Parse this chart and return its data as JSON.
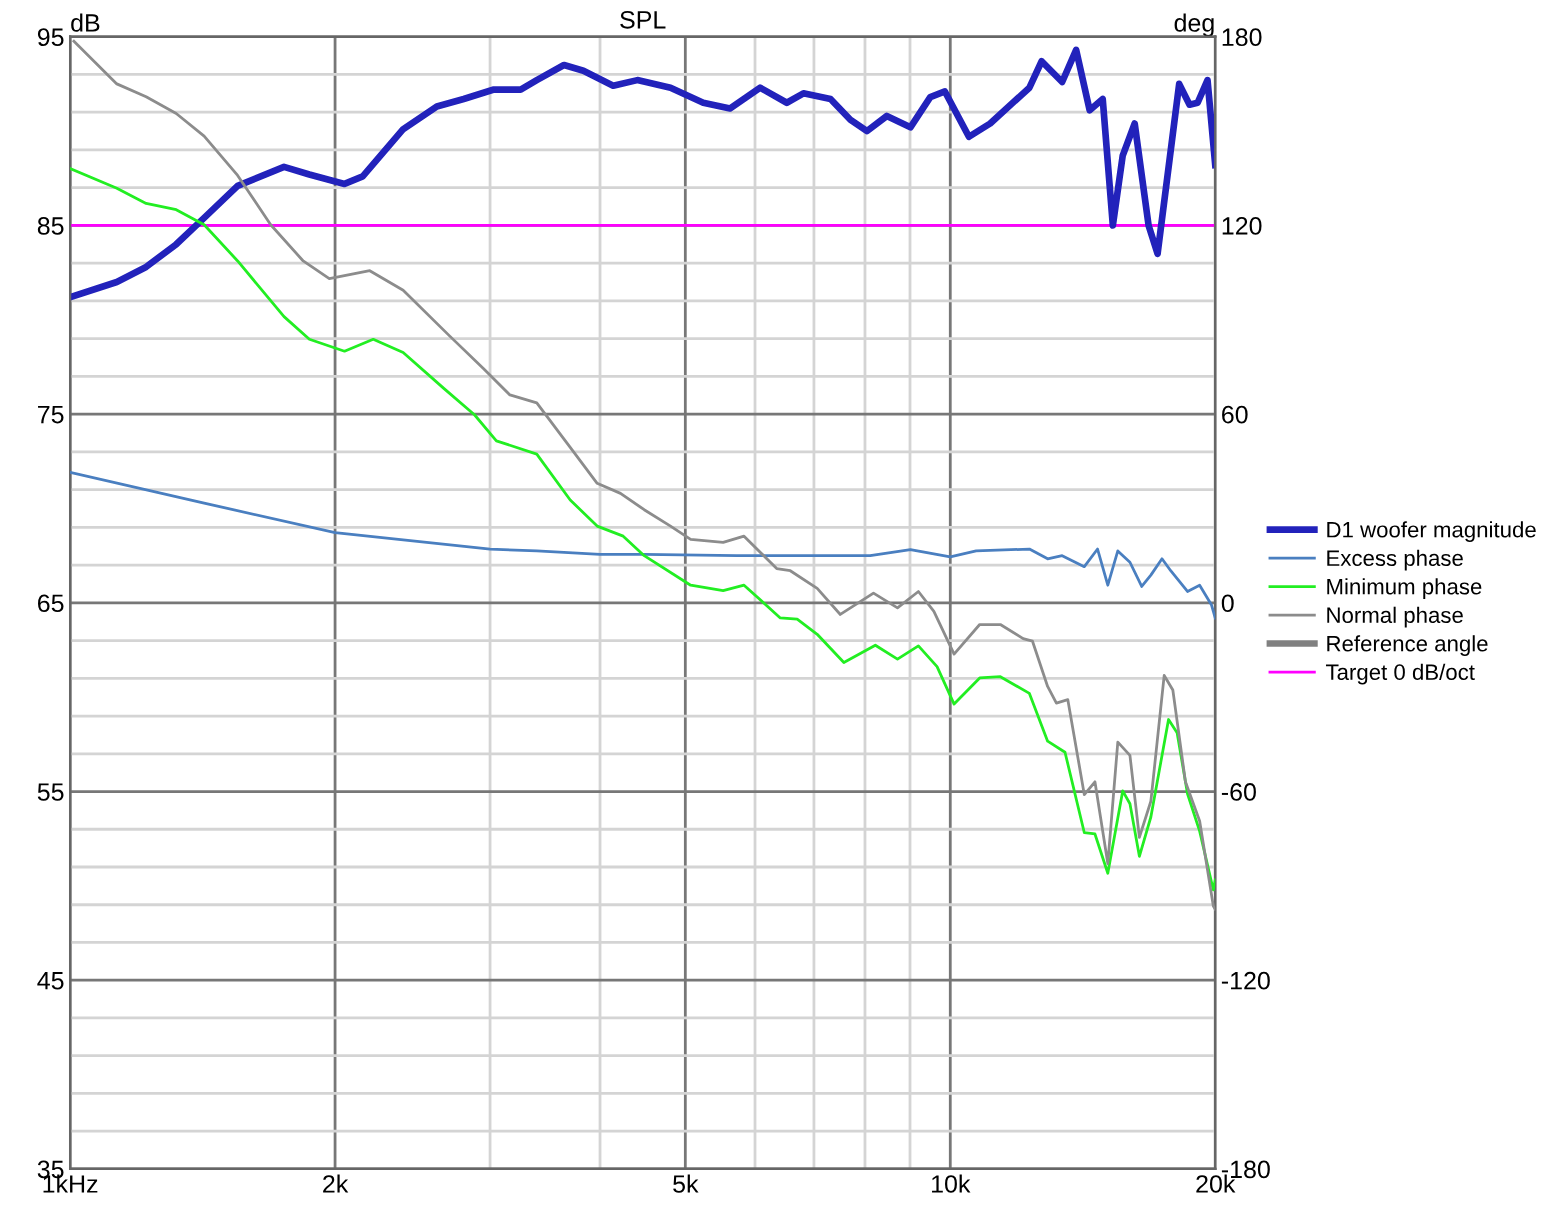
{
  "chart_data": {
    "type": "line",
    "title": "SPL",
    "ylabel": "dB",
    "y2label": "deg",
    "xlim": [
      1,
      20
    ],
    "log": "x",
    "xticks": [
      {
        "value": 1,
        "label": "1kHz"
      },
      {
        "value": 2,
        "label": "2k"
      },
      {
        "value": 3,
        "label": null
      },
      {
        "value": 4,
        "label": null
      },
      {
        "value": 5,
        "label": "5k"
      },
      {
        "value": 6,
        "label": null
      },
      {
        "value": 7,
        "label": null
      },
      {
        "value": 8,
        "label": null
      },
      {
        "value": 9,
        "label": null
      },
      {
        "value": 10,
        "label": "10k"
      },
      {
        "value": 20,
        "label": "20k"
      }
    ],
    "ylim": [
      35,
      95
    ],
    "yticks": [
      35,
      {
        "value": 37,
        "label": null
      },
      {
        "value": 39,
        "label": null
      },
      {
        "value": 41,
        "label": null
      },
      {
        "value": 43,
        "label": null
      },
      45,
      {
        "value": 47,
        "label": null
      },
      {
        "value": 49,
        "label": null
      },
      {
        "value": 51,
        "label": null
      },
      {
        "value": 53,
        "label": null
      },
      55,
      {
        "value": 57,
        "label": null
      },
      {
        "value": 59,
        "label": null
      },
      {
        "value": 61,
        "label": null
      },
      {
        "value": 63,
        "label": null
      },
      65,
      {
        "value": 67,
        "label": null
      },
      {
        "value": 69,
        "label": null
      },
      {
        "value": 71,
        "label": null
      },
      {
        "value": 73,
        "label": null
      },
      75,
      {
        "value": 77,
        "label": null
      },
      {
        "value": 79,
        "label": null
      },
      {
        "value": 81,
        "label": null
      },
      {
        "value": 83,
        "label": null
      },
      85,
      {
        "value": 87,
        "label": null
      },
      {
        "value": 89,
        "label": null
      },
      {
        "value": 91,
        "label": null
      },
      {
        "value": 93,
        "label": null
      },
      95
    ],
    "y2lim": [
      -180,
      180
    ],
    "y2ticks": [
      -180,
      -120,
      -60,
      0,
      60,
      120,
      180
    ],
    "grid": true,
    "legend": "right",
    "marker": "none",
    "line_style": "solid",
    "series": [
      {
        "name": "D1 woofer magnitude",
        "color": "#2222bb",
        "x": [
          1,
          1.13,
          1.22,
          1.32,
          1.42,
          1.55,
          1.75,
          1.87,
          2.05,
          2.15,
          2.39,
          2.61,
          2.8,
          3.03,
          3.25,
          3.39,
          3.64,
          3.83,
          4.14,
          4.41,
          4.81,
          5.24,
          5.62,
          6.08,
          6.52,
          6.81,
          7.31,
          7.7,
          8.04,
          8.47,
          9.01,
          9.49,
          9.86,
          10.5,
          11.1,
          12.3,
          12.7,
          13.4,
          13.9,
          14.4,
          14.9,
          15.3,
          15.7,
          16.2,
          16.8,
          17.2,
          18.2,
          18.7,
          19.1,
          19.6,
          20
        ],
        "values": [
          81.2,
          82.0,
          82.8,
          84.0,
          85.4,
          87.1,
          88.1,
          87.7,
          87.2,
          87.6,
          90.1,
          91.3,
          91.7,
          92.2,
          92.2,
          92.7,
          93.5,
          93.2,
          92.4,
          92.7,
          92.3,
          91.5,
          91.2,
          92.3,
          91.5,
          92.0,
          91.7,
          90.6,
          90.0,
          90.8,
          90.2,
          91.8,
          92.1,
          89.7,
          90.4,
          92.3,
          93.7,
          92.6,
          94.3,
          91.1,
          91.7,
          85.0,
          88.7,
          90.4,
          85.0,
          83.5,
          92.5,
          91.4,
          91.5,
          92.7,
          88.2
        ]
      },
      {
        "name": "Excess phase",
        "color": "#4a7fc0",
        "axis": "y2",
        "x": [
          1,
          1.42,
          2,
          3,
          3.39,
          4,
          4.49,
          5.72,
          8.11,
          9.01,
          10,
          10.7,
          12.3,
          12.9,
          13.4,
          14.2,
          14.7,
          15.1,
          15.5,
          16,
          16.5,
          16.9,
          17.4,
          17.8,
          18.6,
          19.2,
          19.8,
          20
        ],
        "values": [
          41.5,
          31.7,
          22.3,
          17.1,
          16.5,
          15.4,
          15.4,
          15.0,
          15.0,
          16.9,
          14.6,
          16.5,
          17.1,
          14.0,
          15.0,
          11.5,
          17.1,
          5.6,
          16.5,
          12.9,
          5.2,
          8.8,
          14.0,
          10.2,
          3.6,
          5.6,
          -0.6,
          -4.8
        ]
      },
      {
        "name": "Minimum phase",
        "color": "#22ee22",
        "axis": "y2",
        "x": [
          1,
          1.13,
          1.22,
          1.32,
          1.42,
          1.55,
          1.75,
          1.87,
          2.05,
          2.21,
          2.39,
          2.66,
          2.88,
          3.05,
          3.39,
          3.7,
          3.97,
          4.25,
          4.49,
          5.07,
          5.52,
          5.83,
          6.41,
          6.7,
          7.06,
          7.57,
          8.22,
          8.71,
          9.2,
          9.66,
          10.1,
          10.8,
          11.4,
          12.3,
          12.9,
          13.5,
          14.2,
          14.6,
          15.1,
          15.7,
          16,
          16.4,
          16.9,
          17.7,
          18.1,
          18.6,
          19.2,
          19.9,
          20
        ],
        "values": [
          138.1,
          131.8,
          127.0,
          125.0,
          120.2,
          108.7,
          91.0,
          83.8,
          80.0,
          83.8,
          79.6,
          68.1,
          59.8,
          51.5,
          47.3,
          32.7,
          24.4,
          21.2,
          15.0,
          5.6,
          3.9,
          5.6,
          -4.8,
          -5.2,
          -10.0,
          -19.0,
          -13.5,
          -17.9,
          -13.7,
          -20.3,
          -32.2,
          -23.9,
          -23.5,
          -28.8,
          -44.0,
          -47.5,
          -73.1,
          -73.5,
          -86.0,
          -59.8,
          -63.9,
          -80.6,
          -68.1,
          -37.1,
          -41.3,
          -60.7,
          -72.6,
          -91.3,
          -88.1
        ]
      },
      {
        "name": "Normal phase",
        "color": "#8c8c8c",
        "axis": "y2",
        "x": [
          1.01,
          1.13,
          1.22,
          1.32,
          1.42,
          1.55,
          1.69,
          1.84,
          1.97,
          2.19,
          2.39,
          2.7,
          2.95,
          3.16,
          3.39,
          3.7,
          3.97,
          4.22,
          4.49,
          4.81,
          5.07,
          5.52,
          5.83,
          6.35,
          6.58,
          7.06,
          7.5,
          8.18,
          8.71,
          9.2,
          9.58,
          10.1,
          10.8,
          11.4,
          12.1,
          12.4,
          12.9,
          13.2,
          13.6,
          14.2,
          14.6,
          15.1,
          15.5,
          16,
          16.4,
          16.9,
          17.5,
          17.9,
          18.5,
          19.2,
          19.9,
          20
        ],
        "values": [
          178.6,
          165.0,
          160.9,
          155.6,
          148.4,
          135.9,
          120.2,
          108.7,
          103.1,
          105.6,
          99.4,
          84.8,
          74.4,
          66.1,
          63.6,
          49.4,
          38.0,
          34.8,
          29.6,
          24.4,
          20.2,
          19.2,
          21.2,
          10.9,
          10.2,
          4.6,
          -3.7,
          3.1,
          -1.6,
          3.6,
          -2.7,
          -16.3,
          -6.9,
          -6.9,
          -11.4,
          -12.2,
          -26.6,
          -31.9,
          -30.8,
          -61.0,
          -56.9,
          -82.9,
          -44.3,
          -48.5,
          -74.6,
          -63.1,
          -23.1,
          -27.7,
          -56.9,
          -69.4,
          -96.4,
          -97.5
        ]
      },
      {
        "name": "Reference angle",
        "color": "#808080",
        "axis": "y2"
      },
      {
        "name": "Target 0 dB/oct",
        "color": "#ff00ff",
        "x": [
          1,
          20
        ],
        "values": [
          85,
          85
        ]
      }
    ]
  }
}
